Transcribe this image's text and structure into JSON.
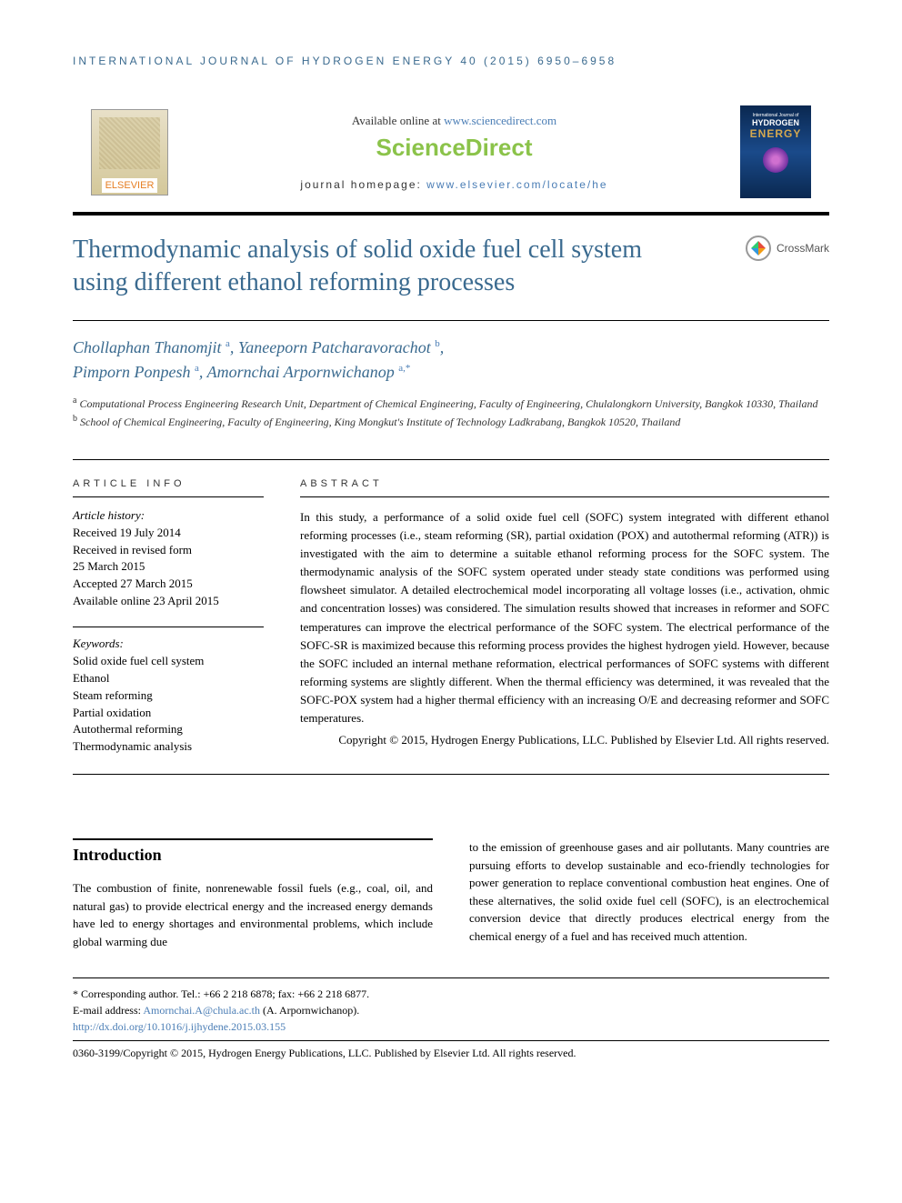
{
  "running_header": "INTERNATIONAL JOURNAL OF HYDROGEN ENERGY 40 (2015) 6950–6958",
  "header": {
    "available_prefix": "Available online at ",
    "available_link": "www.sciencedirect.com",
    "brand": "ScienceDirect",
    "homepage_prefix": "journal homepage: ",
    "homepage_link": "www.elsevier.com/locate/he",
    "elsevier": "ELSEVIER",
    "cover_line1": "International Journal of",
    "cover_line2": "HYDROGEN",
    "cover_line3": "ENERGY"
  },
  "crossmark": "CrossMark",
  "title": "Thermodynamic analysis of solid oxide fuel cell system using different ethanol reforming processes",
  "authors": {
    "a1_name": "Chollaphan Thanomjit",
    "a1_aff": "a",
    "a2_name": "Yaneeporn Patcharavorachot",
    "a2_aff": "b",
    "a3_name": "Pimporn Ponpesh",
    "a3_aff": "a",
    "a4_name": "Amornchai Arpornwichanop",
    "a4_aff": "a,",
    "a4_corr": "*"
  },
  "affiliations": {
    "a": "Computational Process Engineering Research Unit, Department of Chemical Engineering, Faculty of Engineering, Chulalongkorn University, Bangkok 10330, Thailand",
    "b": "School of Chemical Engineering, Faculty of Engineering, King Mongkut's Institute of Technology Ladkrabang, Bangkok 10520, Thailand"
  },
  "info": {
    "header": "ARTICLE INFO",
    "history_label": "Article history:",
    "h1": "Received 19 July 2014",
    "h2": "Received in revised form",
    "h3": "25 March 2015",
    "h4": "Accepted 27 March 2015",
    "h5": "Available online 23 April 2015",
    "keywords_label": "Keywords:",
    "k1": "Solid oxide fuel cell system",
    "k2": "Ethanol",
    "k3": "Steam reforming",
    "k4": "Partial oxidation",
    "k5": "Autothermal reforming",
    "k6": "Thermodynamic analysis"
  },
  "abstract": {
    "header": "ABSTRACT",
    "text": "In this study, a performance of a solid oxide fuel cell (SOFC) system integrated with different ethanol reforming processes (i.e., steam reforming (SR), partial oxidation (POX) and autothermal reforming (ATR)) is investigated with the aim to determine a suitable ethanol reforming process for the SOFC system. The thermodynamic analysis of the SOFC system operated under steady state conditions was performed using flowsheet simulator. A detailed electrochemical model incorporating all voltage losses (i.e., activation, ohmic and concentration losses) was considered. The simulation results showed that increases in reformer and SOFC temperatures can improve the electrical performance of the SOFC system. The electrical performance of the SOFC-SR is maximized because this reforming process provides the highest hydrogen yield. However, because the SOFC included an internal methane reformation, electrical performances of SOFC systems with different reforming systems are slightly different. When the thermal efficiency was determined, it was revealed that the SOFC-POX system had a higher thermal efficiency with an increasing O/E and decreasing reformer and SOFC temperatures.",
    "copyright": "Copyright © 2015, Hydrogen Energy Publications, LLC. Published by Elsevier Ltd. All rights reserved."
  },
  "intro": {
    "heading": "Introduction",
    "col1": "The combustion of finite, nonrenewable fossil fuels (e.g., coal, oil, and natural gas) to provide electrical energy and the increased energy demands have led to energy shortages and environmental problems, which include global warming due",
    "col2": "to the emission of greenhouse gases and air pollutants. Many countries are pursuing efforts to develop sustainable and eco-friendly technologies for power generation to replace conventional combustion heat engines. One of these alternatives, the solid oxide fuel cell (SOFC), is an electrochemical conversion device that directly produces electrical energy from the chemical energy of a fuel and has received much attention."
  },
  "footer": {
    "corr": "* Corresponding author. Tel.: +66 2 218 6878; fax: +66 2 218 6877.",
    "email_label": "E-mail address: ",
    "email": "Amornchai.A@chula.ac.th",
    "email_suffix": " (A. Arpornwichanop).",
    "doi": "http://dx.doi.org/10.1016/j.ijhydene.2015.03.155",
    "issn": "0360-3199/Copyright © 2015, Hydrogen Energy Publications, LLC. Published by Elsevier Ltd. All rights reserved."
  },
  "colors": {
    "header_blue": "#3a6a8f",
    "link_blue": "#4a7db5",
    "sd_green": "#8bc34a"
  }
}
